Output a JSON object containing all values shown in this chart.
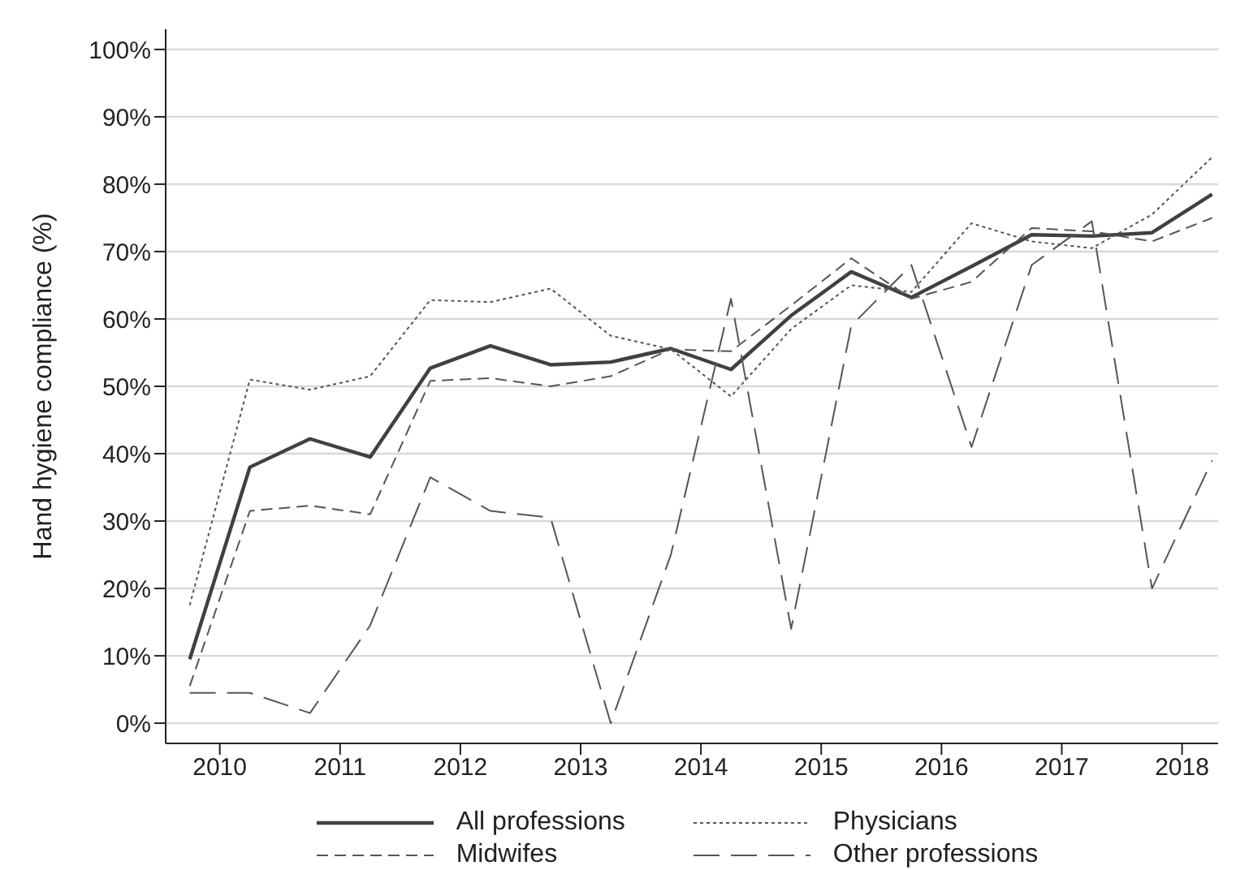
{
  "chart_data": {
    "type": "line",
    "ylabel": "Hand hygiene compliance (%)",
    "x": [
      2009.75,
      2010.25,
      2010.75,
      2011.25,
      2011.75,
      2012.25,
      2012.75,
      2013.25,
      2013.75,
      2014.25,
      2014.75,
      2015.25,
      2015.75,
      2016.25,
      2016.75,
      2017.25,
      2017.75,
      2018.25
    ],
    "series": [
      {
        "name": "All professions",
        "color": "#404040",
        "line_style": "solid",
        "values": [
          9.5,
          38,
          42.2,
          39.5,
          52.7,
          56,
          53.2,
          53.6,
          55.6,
          52.5,
          60.5,
          67,
          63.2,
          67.8,
          72.5,
          72.3,
          72.8,
          78.5
        ]
      },
      {
        "name": "Physicians",
        "color": "#555555",
        "line_style": "dotted",
        "values": [
          17.5,
          51,
          49.5,
          51.5,
          62.8,
          62.5,
          64.5,
          57.5,
          55.5,
          48.5,
          58.5,
          65,
          64,
          74.2,
          71.5,
          70.5,
          75.5,
          84
        ]
      },
      {
        "name": "Midwifes",
        "color": "#555555",
        "line_style": "dashed",
        "values": [
          5.5,
          31.5,
          32.3,
          31,
          50.8,
          51.2,
          50,
          51.5,
          55.5,
          55.2,
          62,
          69,
          63,
          65.5,
          73.5,
          73,
          71.5,
          75
        ]
      },
      {
        "name": "Other professions",
        "color": "#555555",
        "line_style": "dashed",
        "values": [
          4.5,
          4.5,
          1.5,
          14.5,
          36.5,
          31.5,
          30.5,
          0,
          25,
          63,
          14,
          59,
          68,
          41,
          68,
          74.5,
          20,
          39
        ]
      }
    ],
    "xlim": [
      2009.55,
      2018.3
    ],
    "xticks": [
      2010,
      2011,
      2012,
      2013,
      2014,
      2015,
      2016,
      2017,
      2018
    ],
    "ylim": [
      -3,
      103
    ],
    "yticks": [
      {
        "value": 0,
        "label": "0%"
      },
      {
        "value": 10,
        "label": "10%"
      },
      {
        "value": 20,
        "label": "20%"
      },
      {
        "value": 30,
        "label": "30%"
      },
      {
        "value": 40,
        "label": "40%"
      },
      {
        "value": 50,
        "label": "50%"
      },
      {
        "value": 60,
        "label": "60%"
      },
      {
        "value": 70,
        "label": "70%"
      },
      {
        "value": 80,
        "label": "80%"
      },
      {
        "value": 90,
        "label": "90%"
      },
      {
        "value": 100,
        "label": "100%"
      }
    ],
    "grid": "y",
    "legend": "bottom",
    "marker": "none"
  }
}
